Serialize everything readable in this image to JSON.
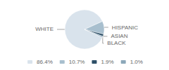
{
  "chart_data": {
    "type": "pie",
    "categories": [
      "WHITE",
      "HISPANIC",
      "ASIAN",
      "BLACK"
    ],
    "values": [
      86.4,
      10.7,
      1.9,
      1.0
    ],
    "value_labels": [
      "86.4%",
      "10.7%",
      "1.9%",
      "1.0%"
    ],
    "colors": [
      "#d9e3ec",
      "#a8bfce",
      "#2e5068",
      "#8ca8ba"
    ],
    "legend": "bottom"
  }
}
